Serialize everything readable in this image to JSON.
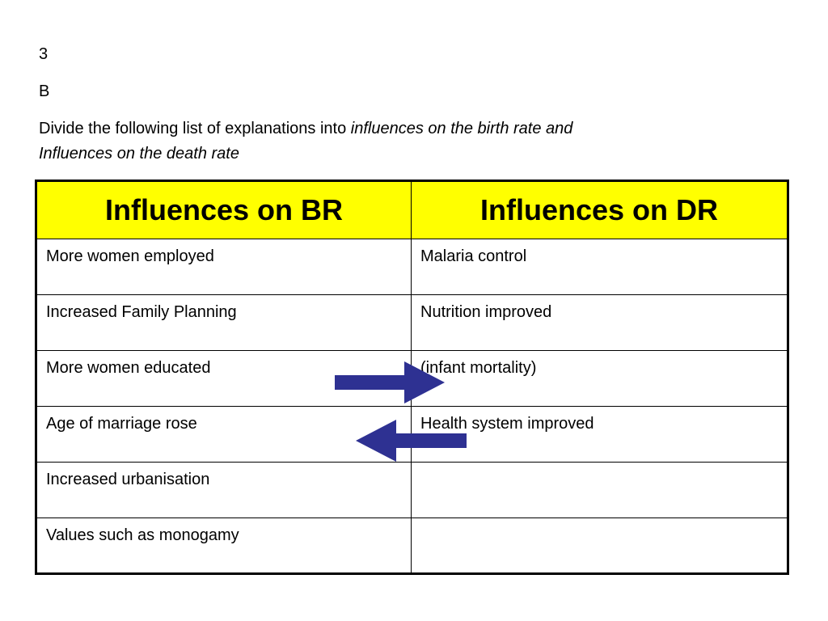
{
  "header": {
    "slide_number": "3",
    "section_letter": "B",
    "instruction_plain": "Divide the following list of explanations into ",
    "instruction_italic_1": "influences on the birth rate and",
    "instruction_italic_2": "Influences on the death rate"
  },
  "table": {
    "headers": [
      "Influences on BR",
      "Influences on DR"
    ],
    "header_background": "#ffff00",
    "rows": [
      [
        "More women employed",
        "Malaria control"
      ],
      [
        "Increased Family Planning",
        "Nutrition improved"
      ],
      [
        "More women educated",
        "(infant mortality)"
      ],
      [
        "Age of marriage rose",
        "Health system improved"
      ],
      [
        "Increased urbanisation",
        ""
      ],
      [
        "Values such as monogamy",
        ""
      ]
    ]
  },
  "arrows": {
    "color": "#2e3192",
    "items": [
      {
        "icon": "arrow-right-icon",
        "direction": "right"
      },
      {
        "icon": "arrow-left-icon",
        "direction": "left"
      }
    ]
  }
}
